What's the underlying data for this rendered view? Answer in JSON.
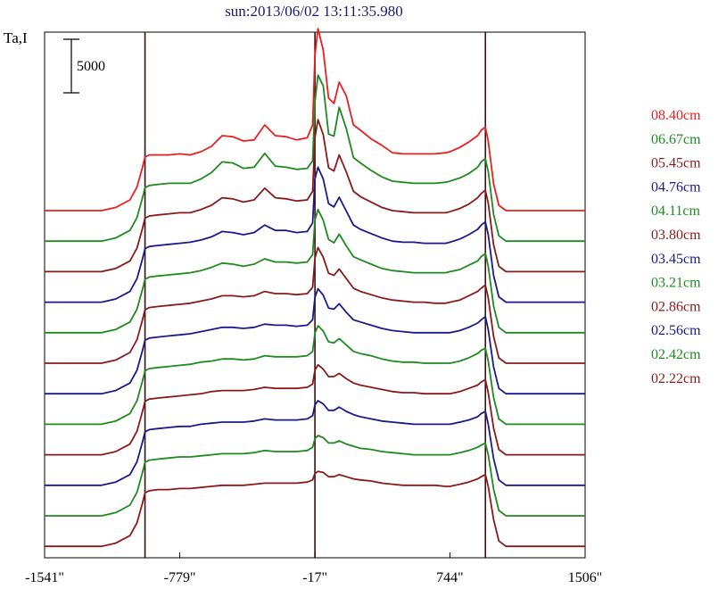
{
  "chart_data": {
    "type": "line",
    "title": "sun:2013/06/02 13:11:35.980",
    "ylabel": "Ta,I",
    "scale_bar_label": "5000",
    "scale_bar_value": 5000,
    "xlim": [
      -1541,
      1506
    ],
    "x_ticks": [
      {
        "value": -1541,
        "label": "-1541\""
      },
      {
        "value": -779,
        "label": "-779\""
      },
      {
        "value": -17,
        "label": "-17\""
      },
      {
        "value": 744,
        "label": "744\""
      },
      {
        "value": 1506,
        "label": "1506\""
      }
    ],
    "vertical_markers": [
      -975,
      -17,
      944
    ],
    "x": [
      -1541,
      -1460,
      -1380,
      -1300,
      -1220,
      -1140,
      -1060,
      -1020,
      -990,
      -975,
      -950,
      -900,
      -840,
      -779,
      -720,
      -660,
      -600,
      -540,
      -480,
      -420,
      -360,
      -300,
      -240,
      -180,
      -120,
      -60,
      -30,
      -17,
      0,
      30,
      60,
      90,
      120,
      160,
      200,
      240,
      300,
      360,
      420,
      480,
      540,
      600,
      660,
      720,
      744,
      800,
      850,
      900,
      920,
      944,
      960,
      990,
      1020,
      1060,
      1140,
      1220,
      1300,
      1380,
      1506
    ],
    "series": [
      {
        "name": "08.40cm",
        "color": "#e82020",
        "values": [
          0,
          0,
          0,
          0,
          0,
          300,
          1000,
          2200,
          4000,
          5000,
          5200,
          5200,
          5200,
          5300,
          5200,
          5500,
          6000,
          7000,
          6900,
          6500,
          6600,
          8000,
          7000,
          6900,
          6600,
          6800,
          8000,
          14500,
          17000,
          15000,
          10500,
          10000,
          12000,
          10700,
          8000,
          7500,
          6700,
          6100,
          5400,
          5300,
          5300,
          5300,
          5300,
          5400,
          5500,
          5900,
          6400,
          7000,
          7500,
          7800,
          6500,
          2500,
          500,
          0,
          0,
          0,
          0,
          0,
          0
        ]
      },
      {
        "name": "06.67cm",
        "color": "#1f8a1f",
        "values": [
          0,
          0,
          0,
          0,
          0,
          300,
          1000,
          2200,
          4000,
          5000,
          5200,
          5300,
          5400,
          5400,
          5400,
          5800,
          6400,
          7400,
          7300,
          6800,
          6900,
          8200,
          7000,
          6900,
          6700,
          6800,
          7500,
          13000,
          15500,
          14500,
          10000,
          9800,
          12500,
          10500,
          7800,
          7300,
          6600,
          6000,
          5600,
          5500,
          5400,
          5400,
          5400,
          5500,
          5600,
          5900,
          6300,
          6900,
          7400,
          7700,
          6500,
          2500,
          500,
          0,
          0,
          0,
          0,
          0,
          0
        ]
      },
      {
        "name": "05.45cm",
        "color": "#8a1a1a",
        "values": [
          0,
          0,
          0,
          0,
          0,
          300,
          1000,
          2200,
          4000,
          5000,
          5200,
          5300,
          5400,
          5500,
          5500,
          5800,
          6200,
          6900,
          6800,
          6500,
          6700,
          7800,
          6900,
          6800,
          6600,
          6700,
          7500,
          12500,
          14200,
          12800,
          9700,
          9400,
          10900,
          9300,
          7500,
          7000,
          6500,
          6000,
          5700,
          5600,
          5500,
          5500,
          5500,
          5500,
          5600,
          5900,
          6300,
          6900,
          7300,
          7600,
          6400,
          2500,
          500,
          0,
          0,
          0,
          0,
          0,
          0
        ]
      },
      {
        "name": "04.76cm",
        "color": "#1a1a8c",
        "values": [
          0,
          0,
          0,
          0,
          0,
          300,
          1000,
          2200,
          4000,
          5000,
          5200,
          5300,
          5400,
          5500,
          5600,
          5800,
          6100,
          6600,
          6500,
          6300,
          6500,
          7200,
          6700,
          6700,
          6500,
          6600,
          7400,
          11500,
          12600,
          11500,
          9200,
          8900,
          9800,
          8500,
          7200,
          6800,
          6400,
          6000,
          5700,
          5600,
          5600,
          5500,
          5500,
          5500,
          5600,
          5900,
          6300,
          6800,
          7200,
          7500,
          6300,
          2500,
          500,
          0,
          0,
          0,
          0,
          0,
          0
        ]
      },
      {
        "name": "04.11cm",
        "color": "#1f8a1f",
        "values": [
          0,
          0,
          0,
          0,
          0,
          300,
          1000,
          2200,
          4000,
          5000,
          5200,
          5300,
          5400,
          5500,
          5600,
          5800,
          6100,
          6500,
          6400,
          6200,
          6400,
          6900,
          6600,
          6600,
          6500,
          6600,
          7300,
          10500,
          11500,
          10500,
          8700,
          8400,
          9200,
          8100,
          7100,
          6800,
          6400,
          6000,
          5800,
          5700,
          5600,
          5600,
          5600,
          5600,
          5700,
          5900,
          6300,
          6700,
          7100,
          7400,
          6200,
          2500,
          500,
          0,
          0,
          0,
          0,
          0,
          0
        ]
      },
      {
        "name": "03.80cm",
        "color": "#8a1a1a",
        "values": [
          0,
          0,
          0,
          0,
          0,
          300,
          1000,
          2200,
          4000,
          5000,
          5200,
          5300,
          5400,
          5500,
          5600,
          5800,
          6000,
          6300,
          6300,
          6200,
          6300,
          6700,
          6500,
          6500,
          6400,
          6500,
          7100,
          9800,
          10800,
          9900,
          8400,
          8200,
          8800,
          7900,
          7000,
          6700,
          6400,
          6100,
          5900,
          5800,
          5700,
          5700,
          5600,
          5600,
          5700,
          5900,
          6300,
          6700,
          7000,
          7300,
          6100,
          2500,
          500,
          0,
          0,
          0,
          0,
          0,
          0
        ]
      },
      {
        "name": "03.45cm",
        "color": "#1a1a8c",
        "values": [
          0,
          0,
          0,
          0,
          0,
          300,
          1000,
          2200,
          4000,
          5000,
          5200,
          5300,
          5400,
          5500,
          5600,
          5800,
          6000,
          6200,
          6200,
          6100,
          6200,
          6500,
          6400,
          6400,
          6300,
          6400,
          6900,
          9000,
          9800,
          9200,
          8000,
          7900,
          8400,
          7600,
          6900,
          6700,
          6400,
          6100,
          5900,
          5800,
          5700,
          5700,
          5700,
          5700,
          5700,
          5900,
          6200,
          6600,
          6900,
          7200,
          6000,
          2500,
          500,
          0,
          0,
          0,
          0,
          0,
          0
        ]
      },
      {
        "name": "03.21cm",
        "color": "#1f8a1f",
        "values": [
          0,
          0,
          0,
          0,
          0,
          300,
          1000,
          2200,
          4000,
          5000,
          5200,
          5300,
          5400,
          5500,
          5600,
          5800,
          5900,
          6100,
          6100,
          6000,
          6100,
          6400,
          6300,
          6300,
          6300,
          6400,
          6800,
          8500,
          9200,
          8700,
          7700,
          7600,
          8000,
          7400,
          6800,
          6600,
          6400,
          6100,
          5900,
          5800,
          5800,
          5700,
          5700,
          5700,
          5700,
          5900,
          6200,
          6600,
          6900,
          7100,
          5900,
          2500,
          500,
          0,
          0,
          0,
          0,
          0,
          0
        ]
      },
      {
        "name": "02.86cm",
        "color": "#8a1a1a",
        "values": [
          0,
          0,
          0,
          0,
          0,
          300,
          1000,
          2200,
          4000,
          5000,
          5200,
          5300,
          5400,
          5500,
          5600,
          5700,
          5900,
          6000,
          6000,
          6000,
          6100,
          6300,
          6200,
          6200,
          6200,
          6300,
          6600,
          7900,
          8400,
          8000,
          7300,
          7300,
          7600,
          7100,
          6700,
          6500,
          6300,
          6100,
          5900,
          5800,
          5800,
          5700,
          5700,
          5700,
          5700,
          5900,
          6200,
          6500,
          6800,
          7000,
          5800,
          2500,
          500,
          0,
          0,
          0,
          0,
          0,
          0
        ]
      },
      {
        "name": "02.56cm",
        "color": "#1a1a8c",
        "values": [
          0,
          0,
          0,
          0,
          0,
          300,
          1000,
          2200,
          4000,
          5000,
          5200,
          5300,
          5400,
          5500,
          5500,
          5700,
          5800,
          5900,
          5900,
          5900,
          6000,
          6200,
          6100,
          6100,
          6100,
          6200,
          6500,
          7500,
          7900,
          7600,
          7000,
          7000,
          7300,
          6900,
          6600,
          6400,
          6200,
          6000,
          5900,
          5800,
          5700,
          5700,
          5700,
          5700,
          5700,
          5900,
          6100,
          6400,
          6700,
          6900,
          5700,
          2500,
          500,
          0,
          0,
          0,
          0,
          0,
          0
        ]
      },
      {
        "name": "02.42cm",
        "color": "#1f8a1f",
        "values": [
          0,
          0,
          0,
          0,
          0,
          300,
          1000,
          2200,
          4000,
          5000,
          5200,
          5300,
          5400,
          5500,
          5500,
          5600,
          5700,
          5800,
          5800,
          5800,
          5900,
          6100,
          6000,
          6000,
          6000,
          6100,
          6400,
          7200,
          7500,
          7300,
          6800,
          6800,
          7000,
          6700,
          6500,
          6300,
          6200,
          6000,
          5900,
          5800,
          5700,
          5700,
          5700,
          5700,
          5700,
          5900,
          6100,
          6400,
          6600,
          6800,
          5700,
          2500,
          500,
          0,
          0,
          0,
          0,
          0,
          0
        ]
      },
      {
        "name": "02.22cm",
        "color": "#8a1a1a",
        "values": [
          0,
          0,
          0,
          0,
          0,
          300,
          1000,
          2200,
          4000,
          5000,
          5200,
          5300,
          5300,
          5400,
          5400,
          5500,
          5600,
          5700,
          5700,
          5700,
          5800,
          5900,
          5900,
          5900,
          5900,
          6000,
          6200,
          6800,
          7000,
          6900,
          6500,
          6500,
          6700,
          6500,
          6300,
          6200,
          6100,
          5900,
          5800,
          5700,
          5700,
          5700,
          5700,
          5600,
          5600,
          5800,
          6000,
          6300,
          6500,
          6700,
          5600,
          2500,
          500,
          0,
          0,
          0,
          0,
          0,
          0
        ]
      }
    ]
  }
}
